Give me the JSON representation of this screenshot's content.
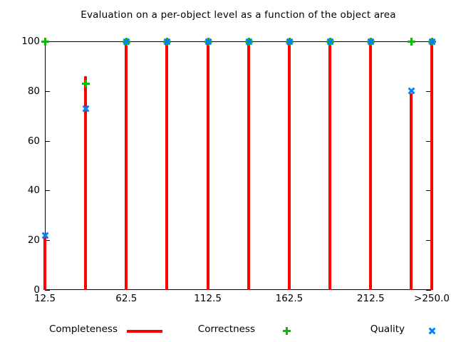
{
  "title": "Evaluation on a per-object level as a function of the object area",
  "colors": {
    "completeness": "#ff0000",
    "correctness": "#00c000",
    "quality": "#0080ff",
    "axis": "#000000",
    "background": "#ffffff"
  },
  "chart_data": {
    "type": "bar",
    "subtype": "impulses-with-points",
    "title": "Evaluation on a per-object level as a function of the object area",
    "xlabel": "",
    "ylabel": "",
    "x": [
      12.5,
      37.5,
      62.5,
      87.5,
      112.5,
      137.5,
      162.5,
      187.5,
      212.5,
      237.5,
      250
    ],
    "xlim": [
      12.5,
      250
    ],
    "ylim": [
      0,
      100
    ],
    "x_tick_values": [
      12.5,
      62.5,
      112.5,
      162.5,
      212.5,
      250
    ],
    "x_tick_labels": [
      "12.5",
      "62.5",
      "112.5",
      "162.5",
      "212.5",
      ">250.0"
    ],
    "y_tick_values": [
      0,
      20,
      40,
      60,
      80,
      100
    ],
    "y_tick_labels": [
      "0",
      "20",
      "40",
      "60",
      "80",
      "100"
    ],
    "grid": false,
    "legend_position": "below-plot",
    "series": [
      {
        "name": "Completeness",
        "style": "impulse",
        "color": "#ff0000",
        "values": [
          21.5,
          86,
          100,
          100,
          100,
          100,
          100,
          100,
          100,
          79,
          100
        ]
      },
      {
        "name": "Correctness",
        "style": "plus",
        "color": "#00c000",
        "values": [
          100,
          83,
          100,
          100,
          100,
          100,
          100,
          100,
          100,
          100,
          100
        ]
      },
      {
        "name": "Quality",
        "style": "cross",
        "color": "#0080ff",
        "values": [
          22,
          73,
          100,
          100,
          100,
          100,
          100,
          100,
          100,
          80,
          100
        ]
      }
    ]
  },
  "legend": {
    "items": [
      {
        "label": "Completeness",
        "marker": "red-line-sample"
      },
      {
        "label": "Correctness",
        "marker": "green-plus-icon"
      },
      {
        "label": "Quality",
        "marker": "blue-cross-icon"
      }
    ]
  }
}
